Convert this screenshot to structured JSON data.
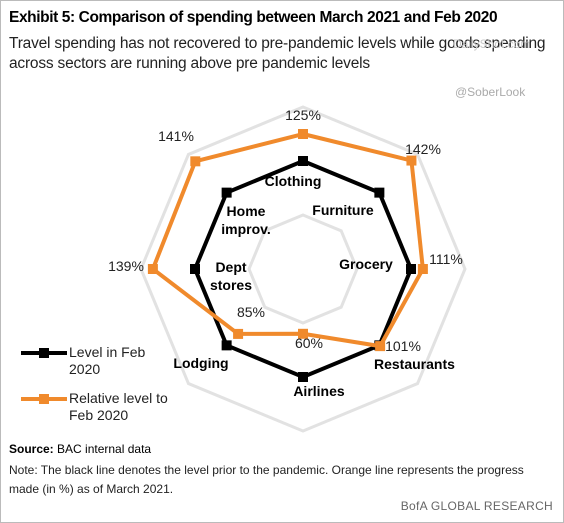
{
  "header": {
    "title": "Exhibit 5: Comparison of spending between March 2021 and Feb 2020",
    "subtitle": "Travel spending has not recovered to pre-pandemic levels while goods spending across sectors are running above pre pandemic levels"
  },
  "chart_data": {
    "type": "radar",
    "categories": [
      "Clothing",
      "Furniture",
      "Grocery",
      "Restaurants",
      "Airlines",
      "Lodging",
      "Dept stores",
      "Home improv."
    ],
    "series": [
      {
        "name": "Level in Feb 2020",
        "color": "#000000",
        "values": [
          100,
          100,
          100,
          100,
          100,
          100,
          100,
          100
        ]
      },
      {
        "name": "Relative level to Feb 2020",
        "color": "#f08a2c",
        "values": [
          125,
          142,
          111,
          101,
          60,
          85,
          139,
          141
        ],
        "value_labels": [
          "125%",
          "142%",
          "111%",
          "101%",
          "60%",
          "85%",
          "139%",
          "141%"
        ]
      }
    ],
    "rlim": [
      0,
      150
    ],
    "rticks": [
      50,
      100,
      150
    ],
    "grid": true,
    "legend": "bottom-left"
  },
  "footer": {
    "source_label": "Source:",
    "source": "BAC internal data",
    "note": "Note: The black line denotes  the level prior to the pandemic. Orange line represents the progress made (in %) as of March 2021.",
    "brand": "BofA GLOBAL RESEARCH"
  },
  "watermarks": [
    "DailyShot.com",
    "@SoberLook"
  ]
}
